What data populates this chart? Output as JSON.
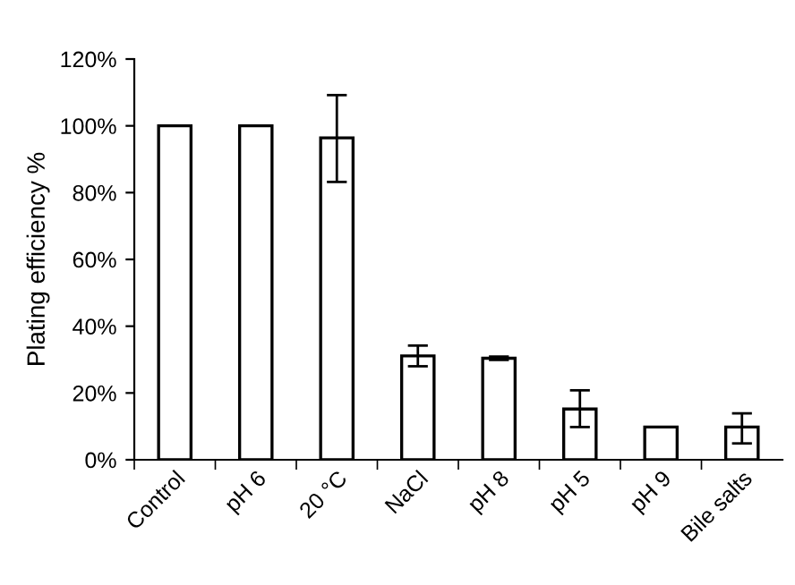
{
  "chart_data": {
    "type": "bar",
    "ylabel": "Plating efficiency %",
    "categories": [
      "Control",
      "pH 6",
      "20 °C",
      "NaCl",
      "pH 8",
      "pH 5",
      "pH 9",
      "Bile salts"
    ],
    "values": [
      100,
      100,
      96.4,
      31.1,
      30.4,
      15.2,
      9.8,
      9.8
    ],
    "errors": [
      null,
      null,
      [
        83.2,
        109.2
      ],
      [
        28.0,
        34.2
      ],
      [
        29.9,
        30.9
      ],
      [
        9.8,
        20.8
      ],
      null,
      [
        4.9,
        13.9
      ]
    ],
    "color": "#ffffff",
    "ylim": [
      0,
      120
    ],
    "yticks": [
      {
        "value": 0,
        "label": "0%"
      },
      {
        "value": 20,
        "label": "20%"
      },
      {
        "value": 40,
        "label": "40%"
      },
      {
        "value": 60,
        "label": "60%"
      },
      {
        "value": 80,
        "label": "80%"
      },
      {
        "value": 100,
        "label": "100%"
      },
      {
        "value": 120,
        "label": "120%"
      }
    ],
    "grid": false
  }
}
